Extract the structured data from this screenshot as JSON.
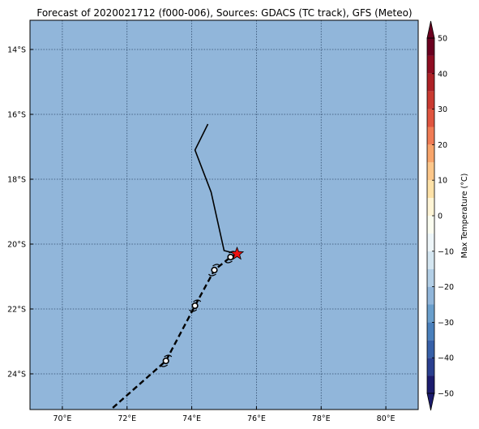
{
  "chart_data": {
    "type": "map",
    "title": "Forecast of 2020021712 (f000-006), Sources: GDACS (TC track), GFS (Meteo)",
    "map": {
      "lon_range": [
        69,
        81
      ],
      "lat_range": [
        -25.1,
        -13.1
      ],
      "lon_ticks": [
        70,
        72,
        74,
        76,
        78,
        80
      ],
      "lon_tick_labels": [
        "70°E",
        "72°E",
        "74°E",
        "76°E",
        "78°E",
        "80°E"
      ],
      "lat_ticks": [
        -14,
        -16,
        -18,
        -20,
        -22,
        -24
      ],
      "lat_tick_labels": [
        "14°S",
        "16°S",
        "18°S",
        "20°S",
        "22°S",
        "24°S"
      ],
      "grid": true,
      "background_color": "#91b6da"
    },
    "observed_track": {
      "style": "solid",
      "color": "#000000",
      "points": [
        [
          74.5,
          -16.3
        ],
        [
          74.1,
          -17.1
        ],
        [
          74.6,
          -18.4
        ],
        [
          75.0,
          -20.2
        ],
        [
          75.4,
          -20.3
        ]
      ]
    },
    "forecast_track": {
      "style": "dashed",
      "color": "#000000",
      "points": [
        [
          75.4,
          -20.3
        ],
        [
          75.2,
          -20.4
        ],
        [
          74.7,
          -20.8
        ],
        [
          74.1,
          -21.9
        ],
        [
          73.2,
          -23.6
        ],
        [
          71.5,
          -25.1
        ]
      ]
    },
    "current_position": {
      "lon": 75.4,
      "lat": -20.3,
      "symbol": "star",
      "color": "#ee1111"
    },
    "cyclone_markers": [
      {
        "lon": 75.2,
        "lat": -20.4
      },
      {
        "lon": 74.7,
        "lat": -20.8
      },
      {
        "lon": 74.1,
        "lat": -21.9
      },
      {
        "lon": 73.2,
        "lat": -23.6
      }
    ],
    "colorbar": {
      "label": "Max Temperature (°C)",
      "min": -50,
      "max": 50,
      "levels": [
        -50,
        -45,
        -40,
        -35,
        -30,
        -25,
        -20,
        -15,
        -10,
        -5,
        0,
        5,
        10,
        15,
        20,
        25,
        30,
        35,
        40,
        45,
        50
      ],
      "ticks": [
        50,
        40,
        30,
        20,
        10,
        0,
        -10,
        -20,
        -30,
        -40,
        -50
      ],
      "tick_labels": [
        "50",
        "40",
        "30",
        "20",
        "10",
        "0",
        "−10",
        "−20",
        "−30",
        "−40",
        "−50"
      ],
      "colors": [
        "#1c1c6e",
        "#2a3f8f",
        "#3760a8",
        "#4a80bc",
        "#6a9fcc",
        "#91b6da",
        "#b3cfe6",
        "#d4e6f1",
        "#eef6f9",
        "#fbfdf0",
        "#fff5d6",
        "#fee2a8",
        "#fdc78a",
        "#f8a56b",
        "#f07c55",
        "#e05540",
        "#c93a31",
        "#ad2126",
        "#8e0d22",
        "#6b0020"
      ],
      "extend": "both"
    }
  }
}
